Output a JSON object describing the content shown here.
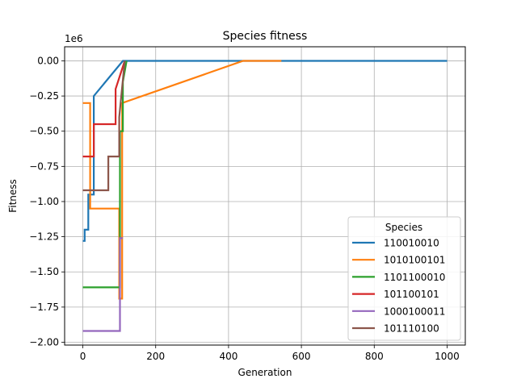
{
  "chart_data": {
    "type": "line",
    "title": "Species fitness",
    "xlabel": "Generation",
    "ylabel": "Fitness",
    "y_scale_label": "1e6",
    "xlim": [
      -50,
      1050
    ],
    "ylim": [
      -2.02,
      0.1
    ],
    "x_ticks": [
      0,
      200,
      400,
      600,
      800,
      1000
    ],
    "x_tick_labels": [
      "0",
      "200",
      "400",
      "600",
      "800",
      "1000"
    ],
    "y_ticks": [
      0,
      -0.25,
      -0.5,
      -0.75,
      -1.0,
      -1.25,
      -1.5,
      -1.75,
      -2.0
    ],
    "y_tick_labels": [
      "0.00",
      "−0.25",
      "−0.50",
      "−0.75",
      "−1.00",
      "−1.25",
      "−1.50",
      "−1.75",
      "−2.00"
    ],
    "grid": true,
    "legend": {
      "title": "Species",
      "placement": "lower-right"
    },
    "series": [
      {
        "name": "110010010",
        "color": "#1f77b4",
        "x": [
          0,
          5,
          5,
          15,
          15,
          30,
          30,
          110,
          1000
        ],
        "y": [
          -1.28,
          -1.28,
          -1.2,
          -1.2,
          -0.95,
          -0.95,
          -0.25,
          0,
          0
        ]
      },
      {
        "name": "1010100101",
        "color": "#ff7f0e",
        "x": [
          0,
          20,
          20,
          100,
          100,
          108,
          108,
          440,
          545
        ],
        "y": [
          -0.3,
          -0.3,
          -1.05,
          -1.05,
          -1.69,
          -1.69,
          -0.3,
          0,
          0
        ]
      },
      {
        "name": "1101100010",
        "color": "#2ca02c",
        "x": [
          0,
          102,
          102,
          110,
          110,
          120
        ],
        "y": [
          -1.61,
          -1.61,
          -0.5,
          -0.5,
          -0.15,
          0
        ]
      },
      {
        "name": "101100101",
        "color": "#d62728",
        "x": [
          0,
          30,
          30,
          90,
          90,
          115
        ],
        "y": [
          -0.68,
          -0.68,
          -0.45,
          -0.45,
          -0.2,
          0
        ]
      },
      {
        "name": "1000100011",
        "color": "#9467bd",
        "x": [
          0,
          102,
          102,
          110
        ],
        "y": [
          -1.92,
          -1.92,
          -1.26,
          -1.26
        ]
      },
      {
        "name": "101110100",
        "color": "#8c564b",
        "x": [
          0,
          70,
          70,
          100,
          100,
          115
        ],
        "y": [
          -0.92,
          -0.92,
          -0.68,
          -0.68,
          -0.4,
          0
        ]
      }
    ]
  }
}
